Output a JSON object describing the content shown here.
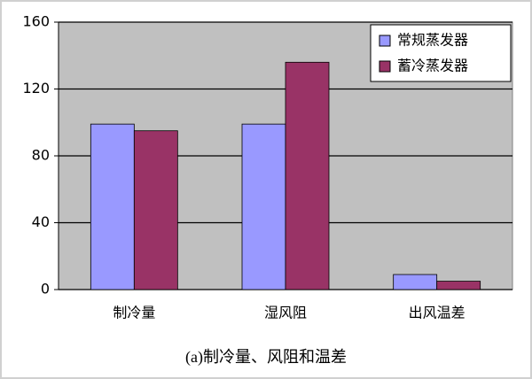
{
  "chart_data": {
    "type": "bar",
    "caption": "(a)制冷量、风阻和温差",
    "categories": [
      "制冷量",
      "湿风阻",
      "出风温差"
    ],
    "series": [
      {
        "name": "常规蒸发器",
        "color": "#9999ff",
        "values": [
          99,
          99,
          9
        ]
      },
      {
        "name": "蓄冷蒸发器",
        "color": "#993366",
        "values": [
          95,
          136,
          5
        ]
      }
    ],
    "ylim": [
      0,
      160
    ],
    "yticks": [
      0,
      40,
      80,
      120,
      160
    ],
    "grid": true,
    "legend": "upper right"
  }
}
